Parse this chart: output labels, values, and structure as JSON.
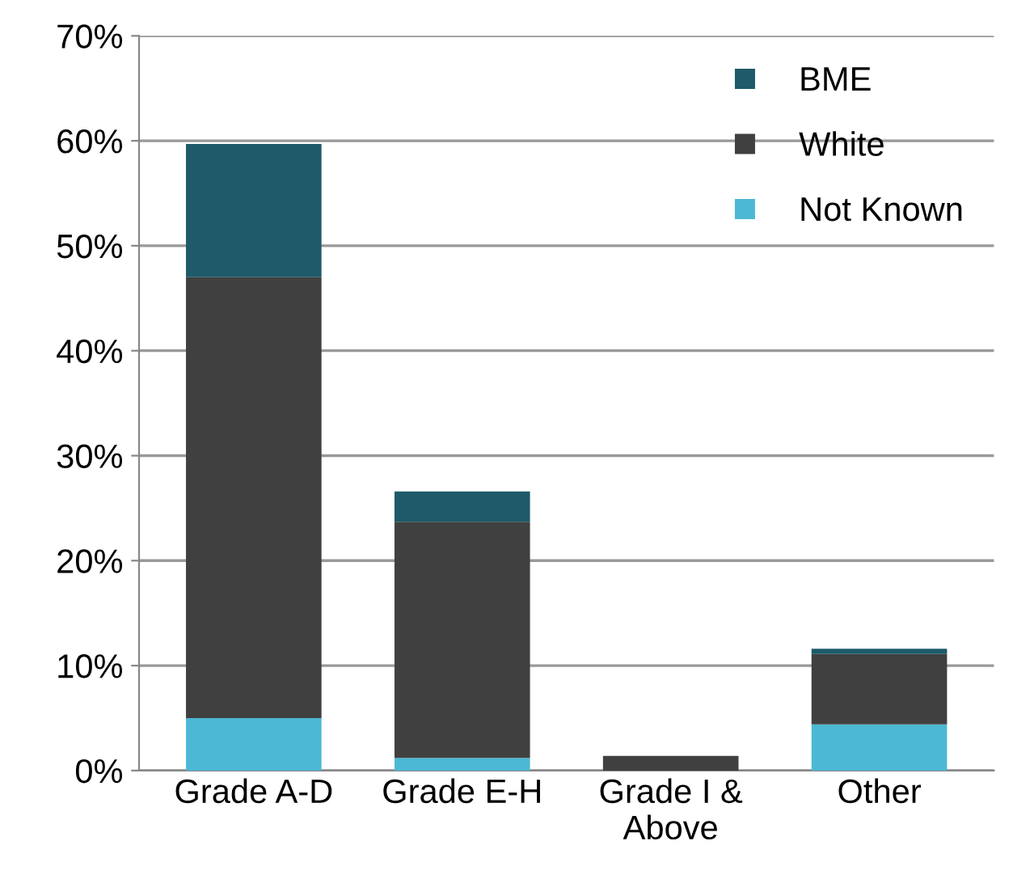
{
  "chart_data": {
    "type": "bar",
    "stacked": true,
    "categories": [
      "Grade A-D",
      "Grade E-H",
      "Grade I &\nAbove",
      "Other"
    ],
    "series": [
      {
        "name": "Not Known",
        "color": "#4db8d4",
        "values": [
          5.0,
          1.2,
          0,
          4.4
        ]
      },
      {
        "name": "White",
        "color": "#404040",
        "values": [
          42.0,
          22.5,
          1.4,
          6.7
        ]
      },
      {
        "name": "BME",
        "color": "#1e5a6a",
        "values": [
          12.7,
          2.9,
          0,
          0.5
        ]
      }
    ],
    "ylim": [
      0,
      70
    ],
    "yticks": [
      {
        "value": 0,
        "label": "0%"
      },
      {
        "value": 10,
        "label": "10%"
      },
      {
        "value": 20,
        "label": "20%"
      },
      {
        "value": 30,
        "label": "30%"
      },
      {
        "value": 40,
        "label": "40%"
      },
      {
        "value": 50,
        "label": "50%"
      },
      {
        "value": 60,
        "label": "60%"
      },
      {
        "value": 70,
        "label": "70%"
      }
    ],
    "grid": "y",
    "legend": "top right"
  }
}
